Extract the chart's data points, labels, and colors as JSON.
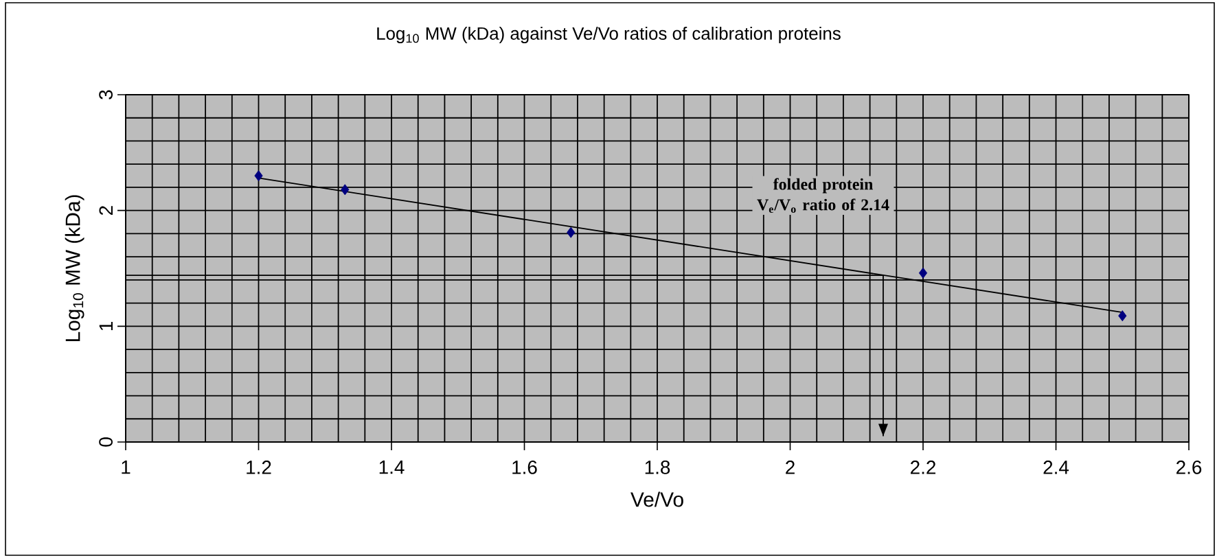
{
  "chart_data": {
    "type": "scatter",
    "title": "Log$_{10}$ MW (kDa) against Ve/Vo ratios of calibration proteins",
    "xlabel": "Ve/Vo",
    "ylabel": "Log$_{10}$ MW (kDa)",
    "xlim": [
      1,
      2.6
    ],
    "xticks": [
      1,
      1.2,
      1.4,
      1.6,
      1.8,
      2,
      2.2,
      2.4,
      2.6
    ],
    "ylim": [
      0,
      3
    ],
    "yticks": [
      0,
      1,
      2,
      3
    ],
    "grid": true,
    "marker": "diamond",
    "series": [
      {
        "type": "scatter",
        "color": "#000080",
        "x": [
          1.2,
          1.33,
          1.67,
          2.2,
          2.5
        ],
        "values": [
          2.3,
          2.18,
          1.81,
          1.46,
          1.09
        ]
      },
      {
        "type": "line",
        "color": "#000000",
        "marker": "none",
        "x": [
          1.2,
          2.5
        ],
        "values": [
          2.28,
          1.12
        ]
      },
      {
        "type": "line",
        "color": "#000000",
        "marker": "none",
        "x": [
          1,
          2.14,
          2.14
        ],
        "values": [
          1.44,
          1.44,
          0.05
        ]
      }
    ],
    "annotations": [
      "folded protein V$_{e}$/V$_{o}$ ratio of 2.14"
    ]
  }
}
